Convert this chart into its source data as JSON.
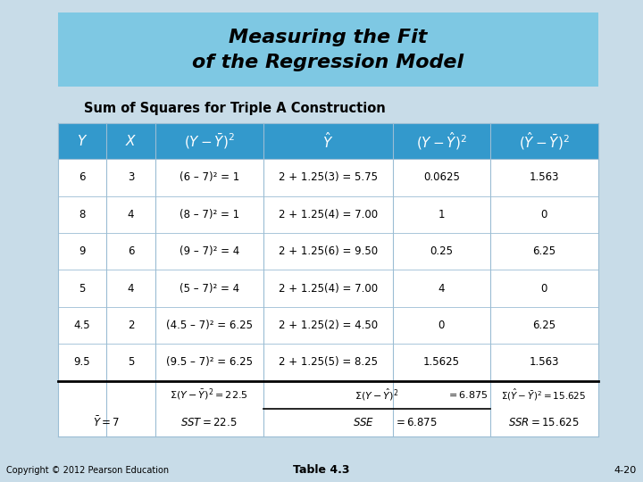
{
  "title_line1": "Measuring the Fit",
  "title_line2": "of the Regression Model",
  "subtitle": "Sum of Squares for Triple A Construction",
  "title_bg": "#7EC8E3",
  "bg_color": "#C8DCE8",
  "table_bg": "#FFFFFF",
  "header_bg": "#3399CC",
  "header_text_color": "#FFFFFF",
  "grid_color": "#9BBDD4",
  "col_headers": [
    "Y",
    "X",
    "(Y – ȳ)²",
    "Ŷ",
    "(Y – Ŷ)²",
    "(Ŷ – ȳ)²"
  ],
  "rows": [
    [
      "6",
      "3",
      "(6 – 7)² = 1",
      "2 + 1.25(3) = 5.75",
      "0.0625",
      "1.563"
    ],
    [
      "8",
      "4",
      "(8 – 7)² = 1",
      "2 + 1.25(4) = 7.00",
      "1",
      "0"
    ],
    [
      "9",
      "6",
      "(9 – 7)² = 4",
      "2 + 1.25(6) = 9.50",
      "0.25",
      "6.25"
    ],
    [
      "5",
      "4",
      "(5 – 7)² = 4",
      "2 + 1.25(4) = 7.00",
      "4",
      "0"
    ],
    [
      "4.5",
      "2",
      "(4.5 – 7)² = 6.25",
      "2 + 1.25(2) = 4.50",
      "0",
      "6.25"
    ],
    [
      "9.5",
      "5",
      "(9.5 – 7)² = 6.25",
      "2 + 1.25(5) = 8.25",
      "1.5625",
      "1.563"
    ]
  ],
  "sum_row1": [
    "Σ(Y – ȳ)² = 22.5",
    "Σ(Y – Ŷ)² = 6.875",
    "Σ(Ŷ – ȳ)² = 15.625"
  ],
  "sum_row2": [
    "SST = 22.5",
    "SSE = 6.875",
    "SSR = 15.625"
  ],
  "y_bar_label": "ȳ = 7",
  "footer_left": "Copyright © 2012 Pearson Education",
  "footer_center": "Table 4.3",
  "footer_right": "4-20"
}
